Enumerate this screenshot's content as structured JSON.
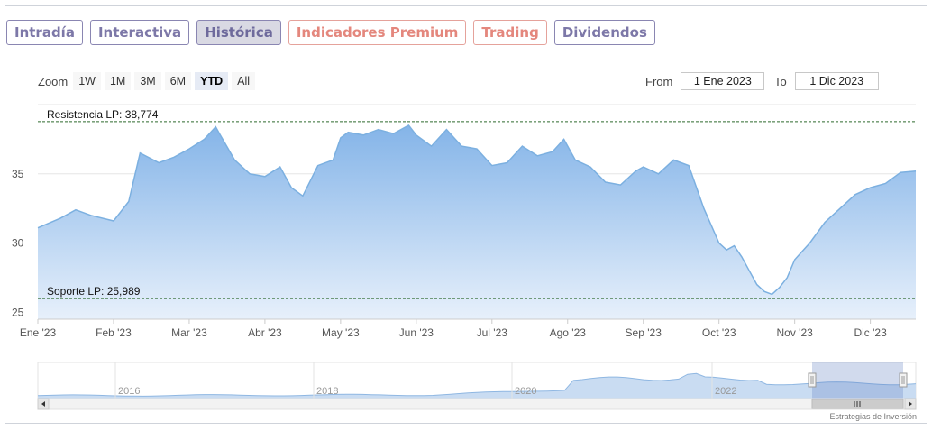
{
  "tabs": [
    {
      "label": "Intradía",
      "style": "normal"
    },
    {
      "label": "Interactiva",
      "style": "normal"
    },
    {
      "label": "Histórica",
      "style": "active"
    },
    {
      "label": "Indicadores Premium",
      "style": "premium"
    },
    {
      "label": "Trading",
      "style": "premium"
    },
    {
      "label": "Dividendos",
      "style": "normal"
    }
  ],
  "zoom": {
    "label": "Zoom",
    "options": [
      "1W",
      "1M",
      "3M",
      "6M",
      "YTD",
      "All"
    ],
    "selected": "YTD"
  },
  "range": {
    "from_label": "From",
    "from_value": "1 Ene 2023",
    "to_label": "To",
    "to_value": "1 Dic 2023"
  },
  "credit": "Estrategias de Inversión",
  "colors": {
    "line": "#7cb0e0",
    "area_top": "#84b4e8",
    "area_bottom": "#e7f0fb",
    "tab_accent": "#7d78a8",
    "premium_accent": "#e4877d"
  },
  "chart_data": {
    "type": "area",
    "x_ticks": [
      "Ene '23",
      "Feb '23",
      "Mar '23",
      "Abr '23",
      "May '23",
      "Jun '23",
      "Jul '23",
      "Ago '23",
      "Sep '23",
      "Oct '23",
      "Nov '23",
      "Dic '23"
    ],
    "y_ticks": [
      25,
      30,
      35
    ],
    "ylim": [
      24.5,
      40
    ],
    "annotations": [
      {
        "label": "Resistencia LP: 38,774",
        "value": 38.774
      },
      {
        "label": "Soporte LP: 25,989",
        "value": 25.989
      }
    ],
    "x": [
      0,
      0.3,
      0.5,
      0.7,
      1.0,
      1.2,
      1.35,
      1.6,
      1.8,
      2.0,
      2.2,
      2.35,
      2.4,
      2.6,
      2.8,
      3.0,
      3.2,
      3.35,
      3.5,
      3.7,
      3.9,
      4.0,
      4.1,
      4.3,
      4.5,
      4.7,
      4.9,
      5.0,
      5.2,
      5.4,
      5.6,
      5.8,
      6.0,
      6.2,
      6.4,
      6.6,
      6.8,
      6.95,
      7.1,
      7.3,
      7.5,
      7.7,
      7.9,
      8.0,
      8.2,
      8.4,
      8.6,
      8.8,
      9.0,
      9.1,
      9.2,
      9.3,
      9.4,
      9.5,
      9.6,
      9.7,
      9.8,
      9.9,
      10.0,
      10.2,
      10.4,
      10.6,
      10.8,
      11.0,
      11.2,
      11.4,
      11.6
    ],
    "values": [
      31.1,
      31.8,
      32.4,
      32.0,
      31.6,
      33.0,
      36.5,
      35.8,
      36.2,
      36.8,
      37.5,
      38.4,
      37.9,
      36.0,
      35.0,
      34.8,
      35.5,
      34.0,
      33.4,
      35.6,
      36.0,
      37.6,
      38.0,
      37.8,
      38.2,
      37.9,
      38.5,
      37.8,
      37.0,
      38.2,
      37.0,
      36.8,
      35.6,
      35.8,
      37.0,
      36.3,
      36.6,
      37.5,
      36.0,
      35.5,
      34.4,
      34.2,
      35.2,
      35.5,
      35.0,
      36.0,
      35.6,
      32.5,
      30.0,
      29.5,
      29.8,
      29.0,
      28.0,
      27.0,
      26.5,
      26.3,
      26.8,
      27.5,
      28.8,
      30.0,
      31.5,
      32.5,
      33.5,
      34.0,
      34.3,
      35.1,
      35.2
    ],
    "navigator": {
      "x_ticks": [
        "2016",
        "2018",
        "2020",
        "2022"
      ]
    }
  }
}
